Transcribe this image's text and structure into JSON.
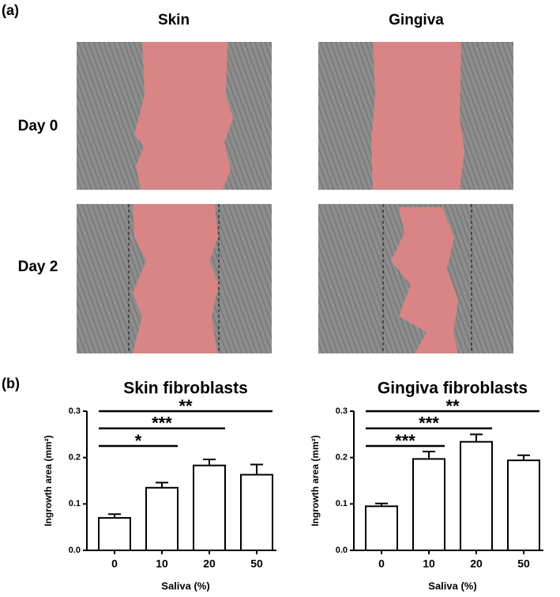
{
  "figure_a": {
    "label": "(a)",
    "columns": [
      "Skin",
      "Gingiva"
    ],
    "rows": [
      "Day 0",
      "Day 2"
    ]
  },
  "panel_b_label": "(b)",
  "chart_data": [
    {
      "type": "bar",
      "title": "Skin fibroblasts",
      "y_label": "Ingrowth area (mm²)",
      "x_label": "Saliva (%)",
      "categories": [
        "0",
        "10",
        "20",
        "50"
      ],
      "values": [
        0.07,
        0.135,
        0.183,
        0.163
      ],
      "errors": [
        0.008,
        0.011,
        0.013,
        0.022
      ],
      "color": "#ffffff",
      "ylim": [
        0,
        0.3
      ],
      "yticks": [
        {
          "value": 0,
          "label": "0.0"
        },
        0.1,
        0.2,
        0.3
      ],
      "annotations": [
        {
          "text": "*",
          "from": 0,
          "to": 1,
          "y": 0.225
        },
        {
          "text": "***",
          "from": 0,
          "to": 2,
          "y": 0.263
        },
        {
          "text": "**",
          "from": 0,
          "to": 3,
          "y": 0.3
        }
      ]
    },
    {
      "type": "bar",
      "title": "Gingiva fibroblasts",
      "y_label": "Ingrowth area (mm²)",
      "x_label": "Saliva (%)",
      "categories": [
        "0",
        "10",
        "20",
        "50"
      ],
      "values": [
        0.095,
        0.197,
        0.234,
        0.194
      ],
      "errors": [
        0.006,
        0.016,
        0.016,
        0.011
      ],
      "color": "#ffffff",
      "ylim": [
        0,
        0.3
      ],
      "yticks": [
        {
          "value": 0,
          "label": "0.0"
        },
        0.1,
        0.2,
        0.3
      ],
      "annotations": [
        {
          "text": "***",
          "from": 0,
          "to": 1,
          "y": 0.225
        },
        {
          "text": "***",
          "from": 0,
          "to": 2,
          "y": 0.263
        },
        {
          "text": "**",
          "from": 0,
          "to": 3,
          "y": 0.3
        }
      ]
    }
  ]
}
